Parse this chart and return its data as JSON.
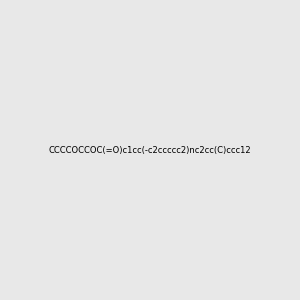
{
  "smiles": "CCCCOCCOC(=O)c1cc(-c2ccccc2)nc2cc(C)ccc12",
  "title": "",
  "background_color": "#e8e8e8",
  "bond_color": "#000000",
  "atom_colors": {
    "N": "#0000ff",
    "O": "#ff0000",
    "C": "#000000"
  },
  "figsize": [
    3.0,
    3.0
  ],
  "dpi": 100
}
